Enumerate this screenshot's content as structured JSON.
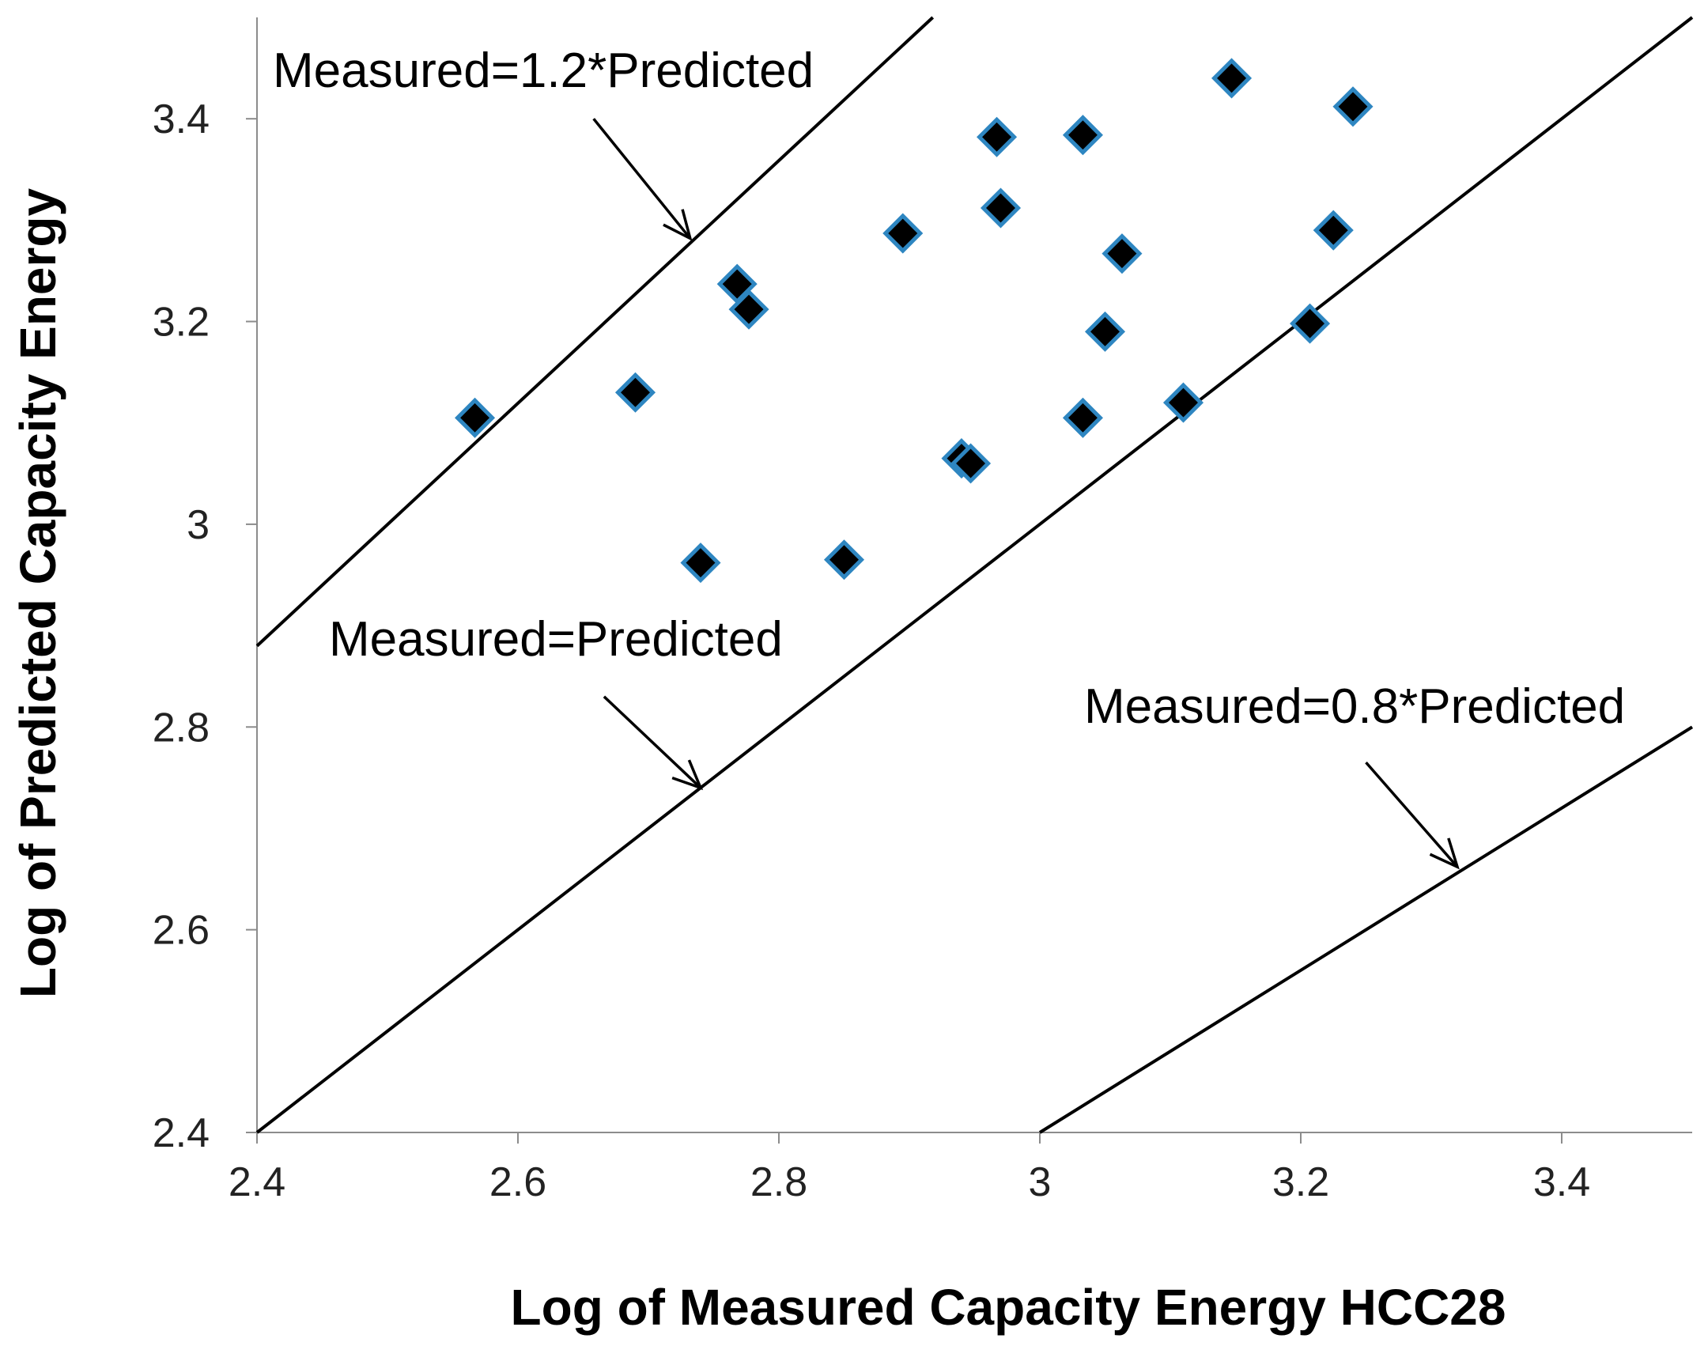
{
  "chart_data": {
    "type": "scatter",
    "xlabel": "Log of Measured Capacity Energy HCC28",
    "ylabel": "Log of Predicted Capacity Energy",
    "xlim": [
      2.4,
      3.5
    ],
    "ylim": [
      2.4,
      3.5
    ],
    "x_ticks": [
      "2.4",
      "2.6",
      "2.8",
      "3",
      "3.2",
      "3.4"
    ],
    "y_ticks": [
      "2.4",
      "2.6",
      "2.8",
      "3",
      "3.2",
      "3.4"
    ],
    "grid": false,
    "marker": "diamond",
    "colors": {
      "point_fill": "#000000",
      "point_edge": "#2e86c1",
      "lines": "#000000"
    },
    "points": [
      {
        "x": 2.567,
        "y": 3.105
      },
      {
        "x": 2.69,
        "y": 3.13
      },
      {
        "x": 2.74,
        "y": 2.962
      },
      {
        "x": 2.768,
        "y": 3.237
      },
      {
        "x": 2.777,
        "y": 3.212
      },
      {
        "x": 2.85,
        "y": 2.965
      },
      {
        "x": 2.895,
        "y": 3.287
      },
      {
        "x": 2.94,
        "y": 3.065
      },
      {
        "x": 2.947,
        "y": 3.06
      },
      {
        "x": 2.967,
        "y": 3.382
      },
      {
        "x": 2.97,
        "y": 3.312
      },
      {
        "x": 3.033,
        "y": 3.384
      },
      {
        "x": 3.033,
        "y": 3.105
      },
      {
        "x": 3.05,
        "y": 3.19
      },
      {
        "x": 3.063,
        "y": 3.267
      },
      {
        "x": 3.11,
        "y": 3.12
      },
      {
        "x": 3.147,
        "y": 3.44
      },
      {
        "x": 3.207,
        "y": 3.198
      },
      {
        "x": 3.225,
        "y": 3.29
      },
      {
        "x": 3.24,
        "y": 3.412
      }
    ],
    "reference_lines": [
      {
        "label": "Measured=1.2*Predicted",
        "x": [
          2.4,
          2.918
        ],
        "y": [
          2.88,
          3.5
        ]
      },
      {
        "label": "Measured=Predicted",
        "x": [
          2.4,
          3.5
        ],
        "y": [
          2.4,
          3.5
        ]
      },
      {
        "label": "Measured=0.8*Predicted",
        "x": [
          3.0,
          3.5
        ],
        "y": [
          2.4,
          2.8
        ]
      }
    ],
    "annotation_arrows": [
      {
        "label": "Measured=1.2*Predicted",
        "from": [
          2.658,
          3.4
        ],
        "to": [
          2.732,
          3.282
        ]
      },
      {
        "label": "Measured=Predicted",
        "from": [
          2.666,
          2.83
        ],
        "to": [
          2.74,
          2.74
        ]
      },
      {
        "label": "Measured=0.8*Predicted",
        "from": [
          3.25,
          2.765
        ],
        "to": [
          3.32,
          2.662
        ]
      }
    ]
  }
}
